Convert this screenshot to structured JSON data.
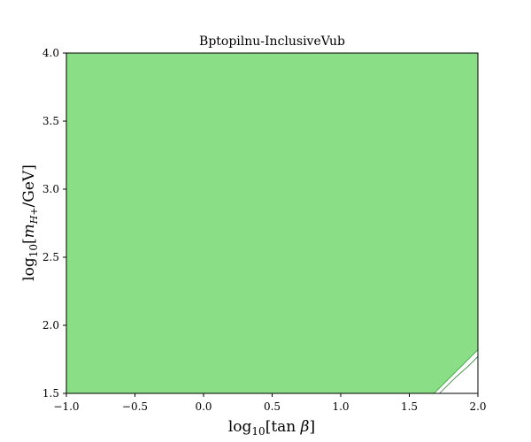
{
  "chart_data": {
    "type": "area",
    "title": "Bptopilnu-InclusiveVub",
    "xlabel": "log10[tan β]",
    "ylabel": "log10[mH+/GeV]",
    "xlim": [
      -1.0,
      2.0
    ],
    "ylim": [
      1.5,
      4.0
    ],
    "x_ticks": [
      "−1.0",
      "−0.5",
      "0.0",
      "0.5",
      "1.0",
      "1.5",
      "2.0"
    ],
    "y_ticks": [
      "1.5",
      "2.0",
      "2.5",
      "3.0",
      "3.5",
      "4.0"
    ],
    "grid": false,
    "legend": "none",
    "colors": {
      "fill": "#8ade86",
      "edge": "#4caf50",
      "inner_edge": "#2e7d32"
    },
    "allowed_region_boundary": [
      {
        "x": -1.0,
        "y": 4.0
      },
      {
        "x": 2.0,
        "y": 4.0
      },
      {
        "x": 2.0,
        "y": 1.82
      },
      {
        "x": 1.68,
        "y": 1.5
      },
      {
        "x": -1.0,
        "y": 1.5
      }
    ],
    "inner_contour": [
      {
        "x": 1.72,
        "y": 1.5
      },
      {
        "x": 1.78,
        "y": 1.56
      },
      {
        "x": 1.84,
        "y": 1.62
      },
      {
        "x": 1.93,
        "y": 1.7
      },
      {
        "x": 2.0,
        "y": 1.77
      }
    ]
  }
}
